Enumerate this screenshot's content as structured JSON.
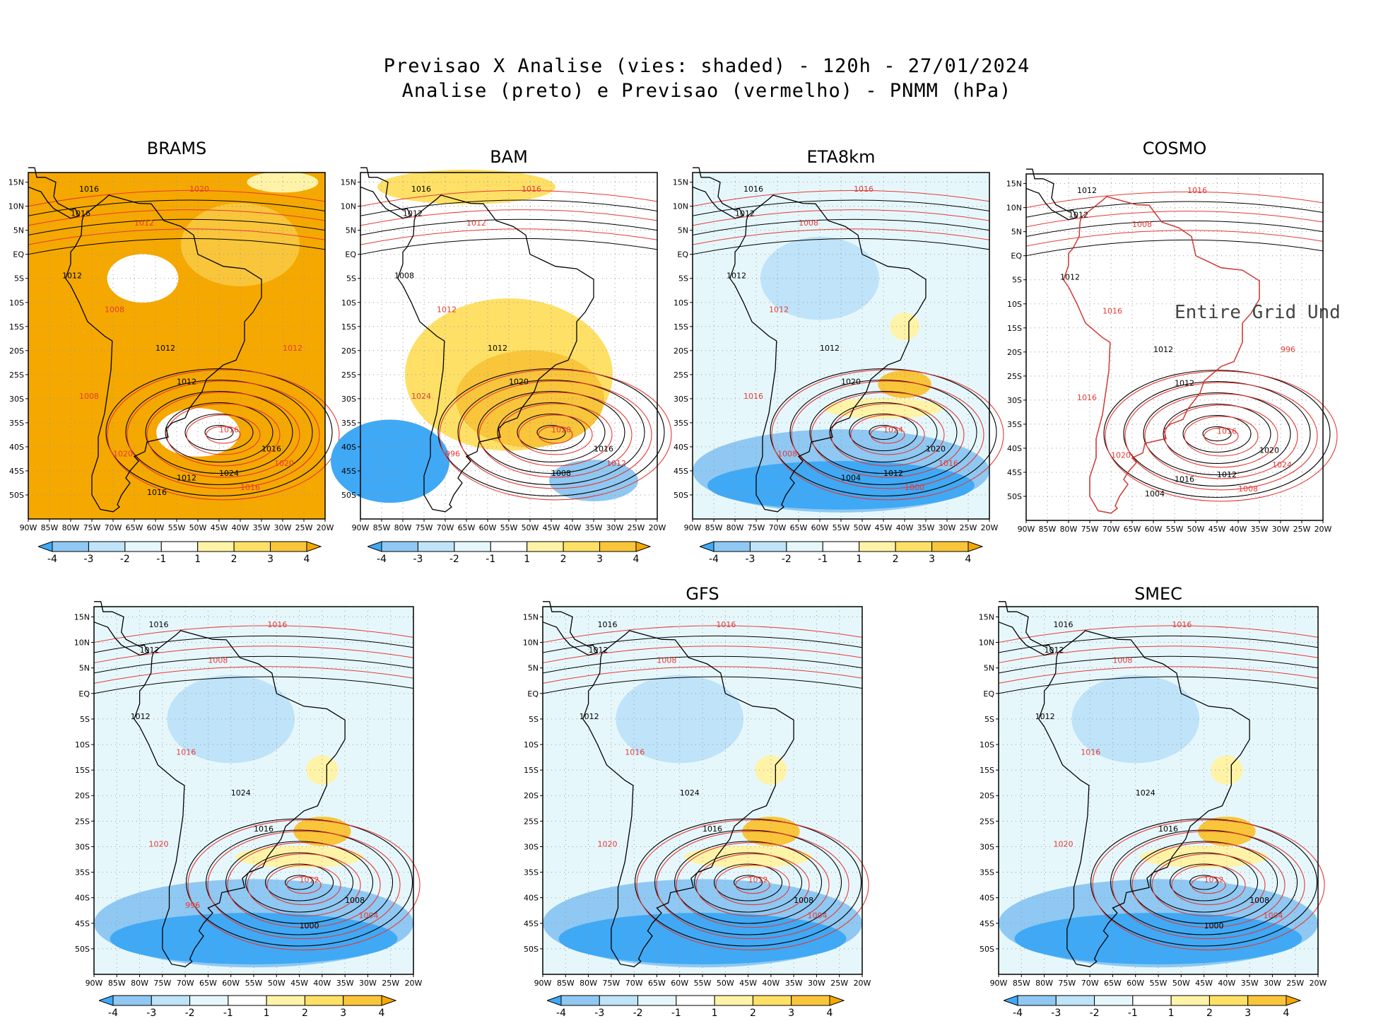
{
  "header": {
    "line1": "Previsao X Analise (vies: shaded) - 120h - 27/01/2024",
    "line2": "Analise (preto) e Previsao (vermelho) - PNMM (hPa)"
  },
  "axes": {
    "lat_labels": [
      "15N",
      "10N",
      "5N",
      "EQ",
      "5S",
      "10S",
      "15S",
      "20S",
      "25S",
      "30S",
      "35S",
      "40S",
      "45S",
      "50S"
    ],
    "lon_labels": [
      "90W",
      "85W",
      "80W",
      "75W",
      "70W",
      "65W",
      "60W",
      "55W",
      "50W",
      "45W",
      "40W",
      "35W",
      "30W",
      "25W",
      "20W"
    ]
  },
  "colorbar": {
    "labels": [
      "-4",
      "-3",
      "-2",
      "-1",
      "1",
      "2",
      "3",
      "4"
    ],
    "colors": [
      "#3fa9f5",
      "#8fc8f2",
      "#bfe3f8",
      "#e6f7fc",
      "#ffffff",
      "#fff3a8",
      "#ffe066",
      "#f9c53a",
      "#f5a800"
    ]
  },
  "panels": [
    {
      "id": "brams",
      "title": "BRAMS",
      "bias": "warm",
      "iso_labels": [
        "1016",
        "1020",
        "1016",
        "1012",
        "1012",
        "1008",
        "1012",
        "1008",
        "1012",
        "1016",
        "1016",
        "1020",
        "1024",
        "1020",
        "1012",
        "1016",
        "1016",
        "1012"
      ]
    },
    {
      "id": "bam",
      "title": "BAM",
      "bias": "mixed",
      "iso_labels": [
        "1016",
        "1016",
        "1012",
        "1012",
        "1008",
        "1012",
        "1012",
        "1024",
        "1020",
        "1020",
        "1016",
        "1012",
        "1008",
        "996"
      ]
    },
    {
      "id": "eta8km",
      "title": "ETA8km",
      "bias": "cold",
      "iso_labels": [
        "1016",
        "1016",
        "1012",
        "1008",
        "1012",
        "1012",
        "1012",
        "1016",
        "1020",
        "1024",
        "1020",
        "1016",
        "1012",
        "1008",
        "1004",
        "1000"
      ]
    },
    {
      "id": "cosmo",
      "title": "COSMO",
      "bias": "none",
      "overlay_text": "Entire Grid Und",
      "iso_labels": [
        "1012",
        "1016",
        "1012",
        "1008",
        "1012",
        "1016",
        "1012",
        "1016",
        "1012",
        "1016",
        "1020",
        "1024",
        "1012",
        "1020",
        "1016",
        "1008",
        "1004",
        "996"
      ]
    },
    {
      "id": "panel5",
      "title": "",
      "bias": "cold",
      "iso_labels": [
        "1016",
        "1016",
        "1012",
        "1008",
        "1012",
        "1016",
        "1024",
        "1020",
        "1016",
        "1012",
        "1008",
        "1004",
        "1000",
        "996"
      ]
    },
    {
      "id": "gfs",
      "title": "GFS",
      "bias": "cold",
      "iso_labels": [
        "1016",
        "1016",
        "1012",
        "1008",
        "1012",
        "1016",
        "1024",
        "1020",
        "1016",
        "1012",
        "1008",
        "1004"
      ]
    },
    {
      "id": "smec",
      "title": "SMEC",
      "bias": "cold",
      "iso_labels": [
        "1016",
        "1016",
        "1012",
        "1008",
        "1012",
        "1016",
        "1024",
        "1020",
        "1016",
        "1012",
        "1008",
        "1004",
        "1000"
      ]
    }
  ]
}
